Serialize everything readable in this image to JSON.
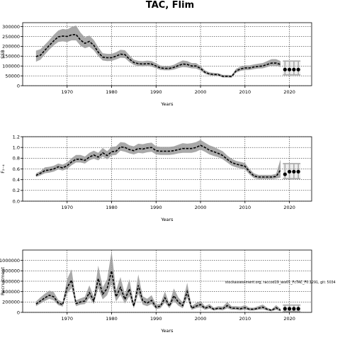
{
  "page": {
    "title": "TAC, Flim"
  },
  "chart_data": [
    {
      "type": "area",
      "title": "",
      "xlabel": "Years",
      "ylabel": "SSB",
      "xlim": [
        1960,
        2025
      ],
      "ylim": [
        0,
        320000
      ],
      "x_ticks": [
        1970,
        1980,
        1990,
        2000,
        2010,
        2020
      ],
      "y_ticks": [
        0,
        50000,
        100000,
        150000,
        200000,
        250000,
        300000
      ],
      "y_tick_labels": [
        "0",
        "50000",
        "100000",
        "150000",
        "200000",
        "250000",
        "300000"
      ],
      "grid": true,
      "series": [
        {
          "x": [
            1963,
            1964,
            1965,
            1966,
            1967,
            1968,
            1969,
            1970,
            1971,
            1972,
            1973,
            1974,
            1975,
            1976,
            1977,
            1978,
            1979,
            1980,
            1981,
            1982,
            1983,
            1984,
            1985,
            1986,
            1987,
            1988,
            1989,
            1990,
            1991,
            1992,
            1993,
            1994,
            1995,
            1996,
            1997,
            1998,
            1999,
            2000,
            2001,
            2002,
            2003,
            2004,
            2005,
            2006,
            2007,
            2008,
            2009,
            2010,
            2011,
            2012,
            2013,
            2014,
            2015,
            2016,
            2017,
            2018
          ],
          "median": [
            148000,
            155000,
            180000,
            205000,
            228000,
            248000,
            252000,
            250000,
            258000,
            260000,
            232000,
            215000,
            225000,
            205000,
            170000,
            145000,
            142000,
            142000,
            150000,
            160000,
            158000,
            135000,
            118000,
            112000,
            110000,
            112000,
            110000,
            100000,
            90000,
            88000,
            88000,
            93000,
            102000,
            110000,
            108000,
            100000,
            100000,
            88000,
            68000,
            60000,
            57000,
            56000,
            48000,
            48000,
            47000,
            75000,
            85000,
            90000,
            90000,
            95000,
            98000,
            100000,
            108000,
            115000,
            115000,
            108000
          ],
          "lower": [
            122000,
            132000,
            158000,
            183000,
            205000,
            222000,
            225000,
            222000,
            230000,
            230000,
            203000,
            190000,
            198000,
            180000,
            150000,
            128000,
            125000,
            126000,
            133000,
            142000,
            140000,
            120000,
            105000,
            100000,
            98000,
            100000,
            97000,
            88000,
            80000,
            78000,
            78000,
            82000,
            89000,
            95000,
            93000,
            88000,
            87000,
            77000,
            60000,
            53000,
            50000,
            49000,
            42000,
            42000,
            41000,
            66000,
            75000,
            79000,
            80000,
            84000,
            87000,
            88000,
            95000,
            101000,
            101000,
            95000
          ],
          "upper": [
            178000,
            185000,
            208000,
            232000,
            258000,
            280000,
            288000,
            285000,
            298000,
            305000,
            270000,
            245000,
            255000,
            232000,
            195000,
            165000,
            162000,
            162000,
            170000,
            182000,
            180000,
            155000,
            132000,
            126000,
            124000,
            127000,
            125000,
            114000,
            102000,
            100000,
            100000,
            106000,
            118000,
            128000,
            125000,
            115000,
            115000,
            100000,
            78000,
            68000,
            65000,
            64000,
            55000,
            55000,
            54000,
            86000,
            97000,
            103000,
            103000,
            108000,
            112000,
            115000,
            125000,
            135000,
            135000,
            125000
          ]
        }
      ],
      "forecast": {
        "x": [
          2019,
          2020,
          2021,
          2022
        ],
        "values": [
          82000,
          82000,
          82000,
          82000
        ],
        "lower": [
          55000,
          55000,
          55000,
          55000
        ],
        "upper": [
          125000,
          125000,
          125000,
          125000
        ]
      }
    },
    {
      "type": "area",
      "title": "",
      "xlabel": "Years",
      "ylabel": "F₂₋₄",
      "xlim": [
        1960,
        2025
      ],
      "ylim": [
        0,
        1.2
      ],
      "x_ticks": [
        1970,
        1980,
        1990,
        2000,
        2010,
        2020
      ],
      "y_ticks": [
        0,
        0.2,
        0.4,
        0.6,
        0.8,
        1.0,
        1.2
      ],
      "y_tick_labels": [
        "0.0",
        "0.2",
        "0.4",
        "0.6",
        "0.8",
        "1.0",
        "1.2"
      ],
      "grid": true,
      "series": [
        {
          "x": [
            1963,
            1964,
            1965,
            1966,
            1967,
            1968,
            1969,
            1970,
            1971,
            1972,
            1973,
            1974,
            1975,
            1976,
            1977,
            1978,
            1979,
            1980,
            1981,
            1982,
            1983,
            1984,
            1985,
            1986,
            1987,
            1988,
            1989,
            1990,
            1991,
            1992,
            1993,
            1994,
            1995,
            1996,
            1997,
            1998,
            1999,
            2000,
            2001,
            2002,
            2003,
            2004,
            2005,
            2006,
            2007,
            2008,
            2009,
            2010,
            2011,
            2012,
            2013,
            2014,
            2015,
            2016,
            2017,
            2018
          ],
          "median": [
            0.48,
            0.52,
            0.57,
            0.58,
            0.6,
            0.64,
            0.62,
            0.66,
            0.73,
            0.78,
            0.78,
            0.76,
            0.82,
            0.86,
            0.82,
            0.9,
            0.85,
            0.92,
            0.93,
            1.01,
            1.0,
            0.96,
            0.94,
            0.98,
            0.97,
            0.99,
            1.0,
            0.94,
            0.93,
            0.93,
            0.93,
            0.94,
            0.96,
            0.98,
            0.98,
            0.98,
            1.0,
            1.04,
            1.0,
            0.95,
            0.92,
            0.89,
            0.85,
            0.78,
            0.72,
            0.69,
            0.67,
            0.65,
            0.55,
            0.47,
            0.45,
            0.45,
            0.45,
            0.45,
            0.46,
            0.58
          ],
          "lower": [
            0.45,
            0.48,
            0.52,
            0.53,
            0.55,
            0.59,
            0.57,
            0.6,
            0.67,
            0.72,
            0.72,
            0.7,
            0.76,
            0.79,
            0.76,
            0.83,
            0.78,
            0.85,
            0.86,
            0.94,
            0.92,
            0.89,
            0.87,
            0.9,
            0.89,
            0.91,
            0.92,
            0.87,
            0.86,
            0.86,
            0.86,
            0.87,
            0.89,
            0.9,
            0.9,
            0.9,
            0.92,
            0.96,
            0.92,
            0.87,
            0.84,
            0.82,
            0.78,
            0.72,
            0.66,
            0.63,
            0.61,
            0.59,
            0.5,
            0.43,
            0.41,
            0.41,
            0.41,
            0.41,
            0.42,
            0.44
          ],
          "upper": [
            0.52,
            0.56,
            0.63,
            0.64,
            0.66,
            0.7,
            0.68,
            0.72,
            0.8,
            0.86,
            0.86,
            0.83,
            0.9,
            0.94,
            0.9,
            0.99,
            0.93,
            1.01,
            1.02,
            1.1,
            1.09,
            1.04,
            1.02,
            1.07,
            1.06,
            1.08,
            1.09,
            1.02,
            1.01,
            1.01,
            1.01,
            1.02,
            1.05,
            1.08,
            1.07,
            1.08,
            1.1,
            1.14,
            1.09,
            1.04,
            1.01,
            0.97,
            0.93,
            0.85,
            0.79,
            0.75,
            0.73,
            0.71,
            0.6,
            0.52,
            0.49,
            0.49,
            0.49,
            0.49,
            0.51,
            0.78
          ]
        }
      ],
      "forecast": {
        "x": [
          2019,
          2020,
          2021,
          2022
        ],
        "values": [
          0.5,
          0.55,
          0.55,
          0.55
        ],
        "lower": [
          0.42,
          0.42,
          0.42,
          0.42
        ],
        "upper": [
          0.7,
          0.7,
          0.7,
          0.7
        ]
      }
    },
    {
      "type": "area",
      "title": "",
      "xlabel": "Years",
      "ylabel": "Recruitment",
      "xlim": [
        1960,
        2025
      ],
      "ylim": [
        0,
        1200000
      ],
      "x_ticks": [
        1970,
        1980,
        1990,
        2000,
        2010,
        2020
      ],
      "y_ticks": [
        0,
        200000,
        400000,
        600000,
        800000,
        1000000
      ],
      "y_tick_labels": [
        "0",
        "200000",
        "400000",
        "600000",
        "800000",
        "1000000"
      ],
      "grid": true,
      "annotation": "stockassessment.org, raccod19_ass01_FcTAC_F0.1291, git: 5034",
      "series": [
        {
          "x": [
            1963,
            1964,
            1965,
            1966,
            1967,
            1968,
            1969,
            1970,
            1971,
            1972,
            1973,
            1974,
            1975,
            1976,
            1977,
            1978,
            1979,
            1980,
            1981,
            1982,
            1983,
            1984,
            1985,
            1986,
            1987,
            1988,
            1989,
            1990,
            1991,
            1992,
            1993,
            1994,
            1995,
            1996,
            1997,
            1998,
            1999,
            2000,
            2001,
            2002,
            2003,
            2004,
            2005,
            2006,
            2007,
            2008,
            2009,
            2010,
            2011,
            2012,
            2013,
            2014,
            2015,
            2016,
            2017,
            2018
          ],
          "median": [
            160000,
            220000,
            280000,
            330000,
            300000,
            180000,
            150000,
            480000,
            620000,
            170000,
            200000,
            220000,
            380000,
            220000,
            650000,
            350000,
            460000,
            800000,
            300000,
            480000,
            250000,
            450000,
            120000,
            520000,
            220000,
            180000,
            230000,
            100000,
            120000,
            280000,
            120000,
            320000,
            200000,
            130000,
            400000,
            80000,
            120000,
            150000,
            80000,
            110000,
            60000,
            80000,
            70000,
            130000,
            80000,
            80000,
            70000,
            90000,
            60000,
            60000,
            80000,
            100000,
            60000,
            40000,
            90000,
            40000
          ],
          "lower": [
            120000,
            170000,
            220000,
            260000,
            230000,
            140000,
            110000,
            360000,
            470000,
            120000,
            150000,
            160000,
            280000,
            160000,
            470000,
            250000,
            330000,
            560000,
            210000,
            340000,
            170000,
            310000,
            80000,
            360000,
            150000,
            120000,
            160000,
            60000,
            80000,
            190000,
            80000,
            220000,
            130000,
            80000,
            280000,
            50000,
            80000,
            100000,
            50000,
            70000,
            35000,
            50000,
            40000,
            80000,
            50000,
            50000,
            40000,
            55000,
            35000,
            35000,
            50000,
            60000,
            35000,
            20000,
            50000,
            20000
          ],
          "upper": [
            210000,
            290000,
            360000,
            420000,
            390000,
            240000,
            200000,
            640000,
            830000,
            230000,
            270000,
            300000,
            520000,
            300000,
            900000,
            480000,
            640000,
            1180000,
            420000,
            680000,
            350000,
            640000,
            170000,
            730000,
            310000,
            260000,
            330000,
            150000,
            170000,
            400000,
            170000,
            460000,
            290000,
            190000,
            570000,
            120000,
            180000,
            220000,
            120000,
            160000,
            90000,
            120000,
            110000,
            200000,
            120000,
            120000,
            110000,
            140000,
            90000,
            90000,
            120000,
            150000,
            90000,
            60000,
            140000,
            70000
          ]
        }
      ],
      "forecast": {
        "x": [
          2019,
          2020,
          2021,
          2022
        ],
        "values": [
          70000,
          70000,
          70000,
          70000
        ],
        "lower": [
          20000,
          20000,
          20000,
          20000
        ],
        "upper": [
          140000,
          140000,
          140000,
          140000
        ]
      }
    }
  ]
}
